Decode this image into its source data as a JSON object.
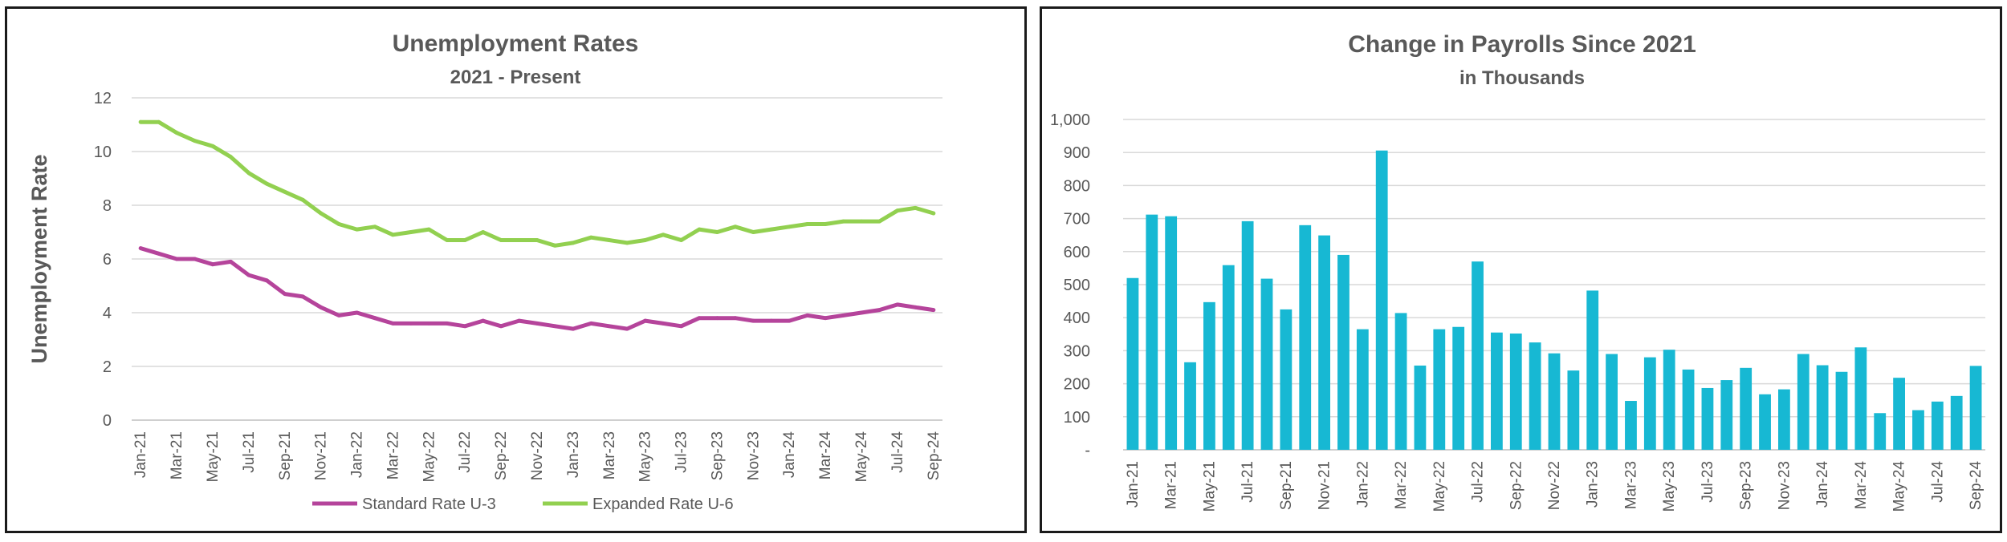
{
  "chart_data": [
    {
      "type": "line",
      "title": "Unemployment Rates",
      "subtitle": "2021 - Present",
      "xlabel": "",
      "ylabel": "Unemployment Rate",
      "ylim": [
        0,
        12
      ],
      "yticks": [
        "0",
        "2",
        "4",
        "6",
        "8",
        "10",
        "12"
      ],
      "grid": true,
      "legend": "bottom",
      "x": [
        "Jan-21",
        "Feb-21",
        "Mar-21",
        "Apr-21",
        "May-21",
        "Jun-21",
        "Jul-21",
        "Aug-21",
        "Sep-21",
        "Oct-21",
        "Nov-21",
        "Dec-21",
        "Jan-22",
        "Feb-22",
        "Mar-22",
        "Apr-22",
        "May-22",
        "Jun-22",
        "Jul-22",
        "Aug-22",
        "Sep-22",
        "Oct-22",
        "Nov-22",
        "Dec-22",
        "Jan-23",
        "Feb-23",
        "Mar-23",
        "Apr-23",
        "May-23",
        "Jun-23",
        "Jul-23",
        "Aug-23",
        "Sep-23",
        "Oct-23",
        "Nov-23",
        "Dec-23",
        "Jan-24",
        "Feb-24",
        "Mar-24",
        "Apr-24",
        "May-24",
        "Jun-24",
        "Jul-24",
        "Aug-24",
        "Sep-24"
      ],
      "xtick_labels": [
        "Jan-21",
        "Mar-21",
        "May-21",
        "Jul-21",
        "Sep-21",
        "Nov-21",
        "Jan-22",
        "Mar-22",
        "May-22",
        "Jul-22",
        "Sep-22",
        "Nov-22",
        "Jan-23",
        "Mar-23",
        "May-23",
        "Jul-23",
        "Sep-23",
        "Nov-23",
        "Jan-24",
        "Mar-24",
        "May-24",
        "Jul-24",
        "Sep-24"
      ],
      "series": [
        {
          "name": "Standard Rate U-3",
          "color": "#b5449b",
          "values": [
            6.4,
            6.2,
            6.0,
            6.0,
            5.8,
            5.9,
            5.4,
            5.2,
            4.7,
            4.6,
            4.2,
            3.9,
            4.0,
            3.8,
            3.6,
            3.6,
            3.6,
            3.6,
            3.5,
            3.7,
            3.5,
            3.7,
            3.6,
            3.5,
            3.4,
            3.6,
            3.5,
            3.4,
            3.7,
            3.6,
            3.5,
            3.8,
            3.8,
            3.8,
            3.7,
            3.7,
            3.7,
            3.9,
            3.8,
            3.9,
            4.0,
            4.1,
            4.3,
            4.2,
            4.1
          ]
        },
        {
          "name": "Expanded Rate U-6",
          "color": "#92d050",
          "values": [
            11.1,
            11.1,
            10.7,
            10.4,
            10.2,
            9.8,
            9.2,
            8.8,
            8.5,
            8.2,
            7.7,
            7.3,
            7.1,
            7.2,
            6.9,
            7.0,
            7.1,
            6.7,
            6.7,
            7.0,
            6.7,
            6.7,
            6.7,
            6.5,
            6.6,
            6.8,
            6.7,
            6.6,
            6.7,
            6.9,
            6.7,
            7.1,
            7.0,
            7.2,
            7.0,
            7.1,
            7.2,
            7.3,
            7.3,
            7.4,
            7.4,
            7.4,
            7.8,
            7.9,
            7.7
          ]
        }
      ]
    },
    {
      "type": "bar",
      "title": "Change in Payrolls Since 2021",
      "subtitle": "in Thousands",
      "xlabel": "",
      "ylabel": "",
      "ylim": [
        0,
        1000
      ],
      "yticks": [
        "-",
        "100",
        "200",
        "300",
        "400",
        "500",
        "600",
        "700",
        "800",
        "900",
        "1,000"
      ],
      "grid": true,
      "color": "#17b8d3",
      "categories": [
        "Jan-21",
        "Feb-21",
        "Mar-21",
        "Apr-21",
        "May-21",
        "Jun-21",
        "Jul-21",
        "Aug-21",
        "Sep-21",
        "Oct-21",
        "Nov-21",
        "Dec-21",
        "Jan-22",
        "Feb-22",
        "Mar-22",
        "Apr-22",
        "May-22",
        "Jun-22",
        "Jul-22",
        "Aug-22",
        "Sep-22",
        "Oct-22",
        "Nov-22",
        "Dec-22",
        "Jan-23",
        "Feb-23",
        "Mar-23",
        "Apr-23",
        "May-23",
        "Jun-23",
        "Jul-23",
        "Aug-23",
        "Sep-23",
        "Oct-23",
        "Nov-23",
        "Dec-23",
        "Jan-24",
        "Feb-24",
        "Mar-24",
        "Apr-24",
        "May-24",
        "Jun-24",
        "Jul-24",
        "Aug-24",
        "Sep-24"
      ],
      "xtick_labels": [
        "Jan-21",
        "Mar-21",
        "May-21",
        "Jul-21",
        "Sep-21",
        "Nov-21",
        "Jan-22",
        "Mar-22",
        "May-22",
        "Jul-22",
        "Sep-22",
        "Nov-22",
        "Jan-23",
        "Mar-23",
        "May-23",
        "Jul-23",
        "Sep-23",
        "Nov-23",
        "Jan-24",
        "Mar-24",
        "May-24",
        "Jul-24",
        "Sep-24"
      ],
      "values": [
        520,
        712,
        707,
        265,
        447,
        559,
        692,
        518,
        425,
        680,
        649,
        590,
        365,
        906,
        414,
        255,
        365,
        372,
        570,
        355,
        352,
        325,
        292,
        240,
        482,
        290,
        148,
        280,
        303,
        243,
        187,
        211,
        248,
        168,
        183,
        290,
        256,
        236,
        310,
        111,
        218,
        120,
        146,
        163,
        254
      ]
    }
  ]
}
